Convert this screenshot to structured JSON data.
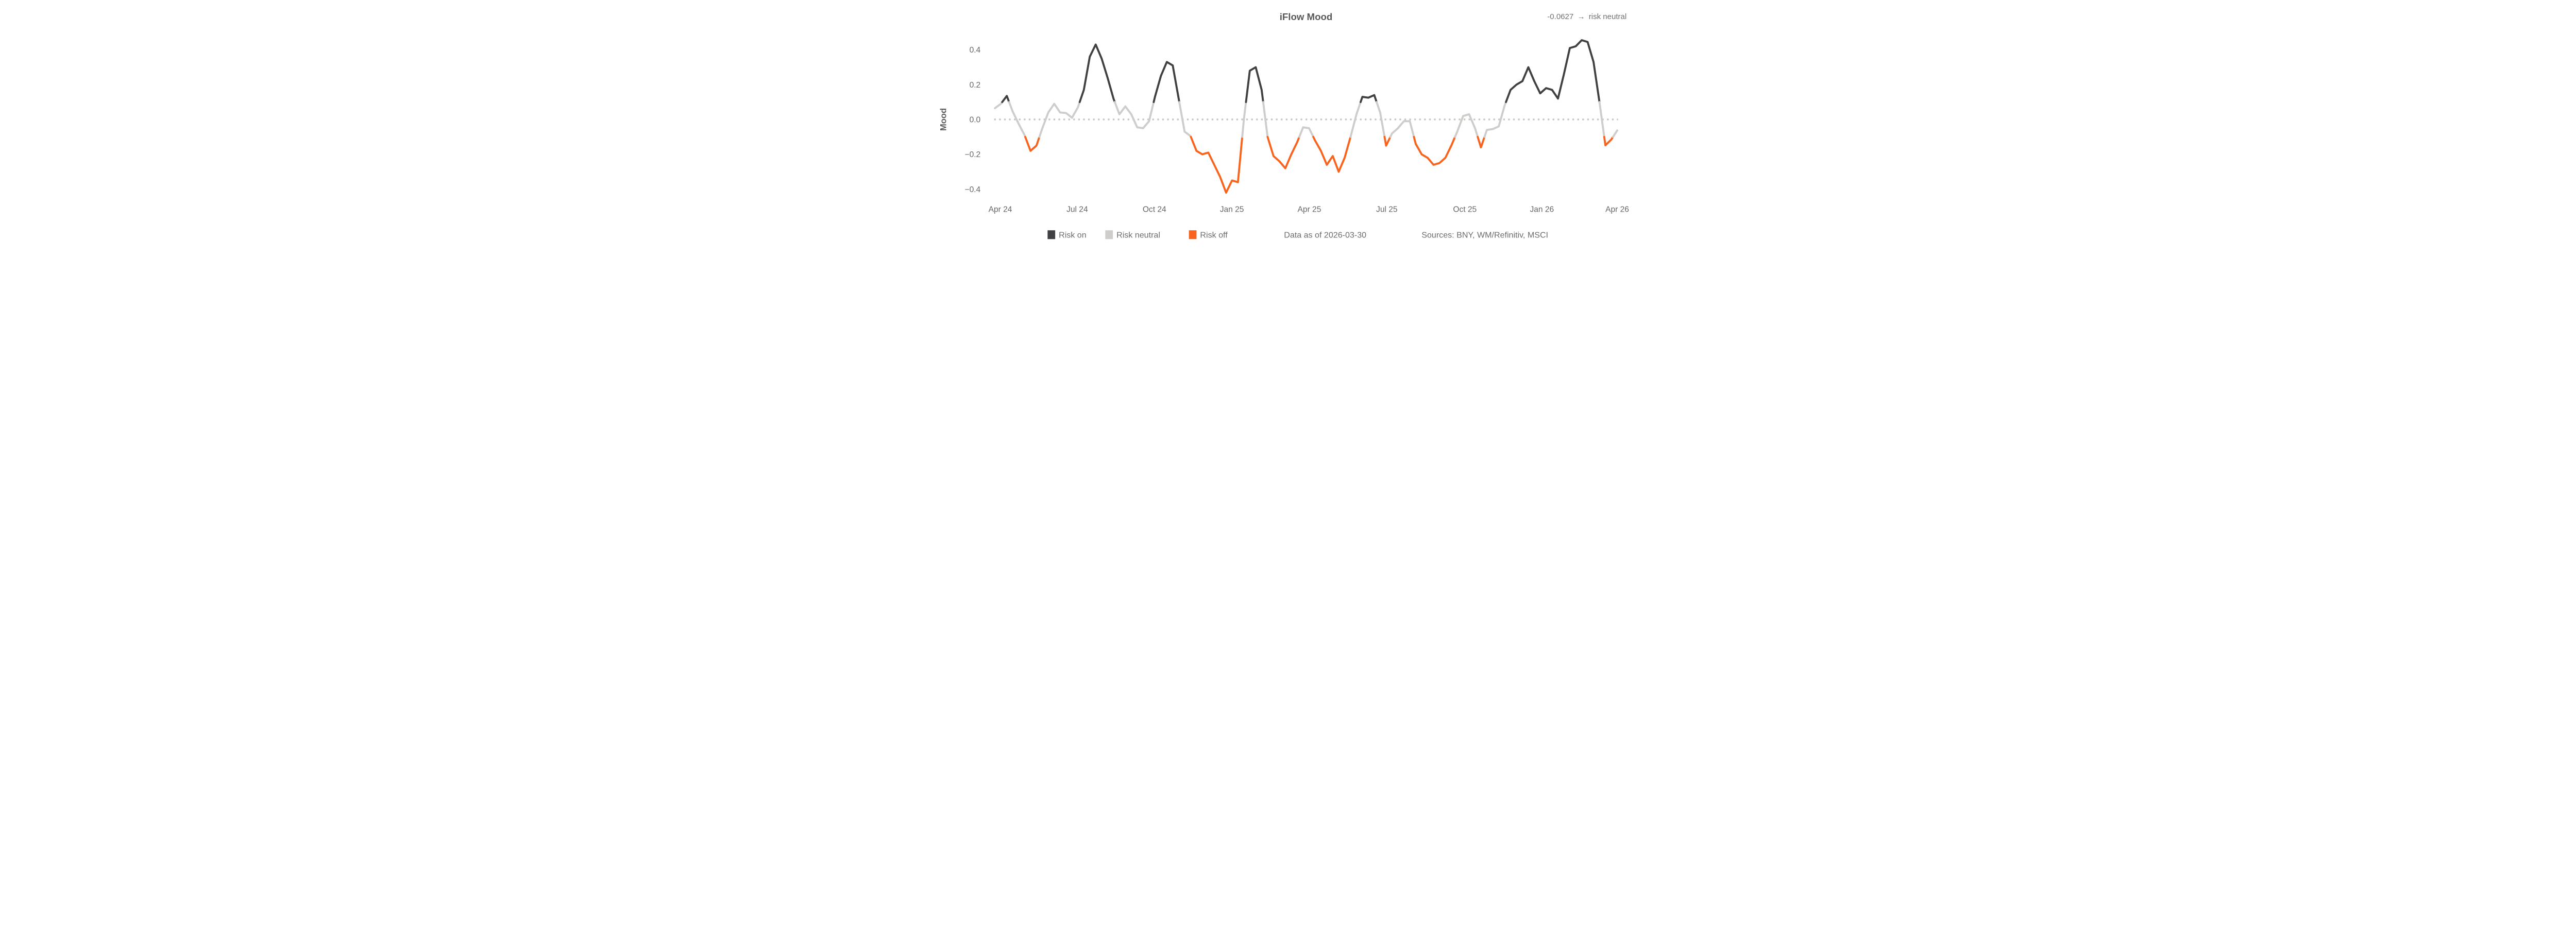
{
  "header": {
    "title": "iFlow Mood",
    "current_value": "-0.0627",
    "arrow": "→",
    "current_state": "risk neutral"
  },
  "axes": {
    "y_label": "Mood",
    "y_ticks": [
      {
        "label": "0.4",
        "v": 0.4
      },
      {
        "label": "0.2",
        "v": 0.2
      },
      {
        "label": "0.0",
        "v": 0.0
      },
      {
        "label": "−0.2",
        "v": -0.2
      },
      {
        "label": "−0.4",
        "v": -0.4
      }
    ],
    "x_ticks": [
      {
        "label": "Apr 24",
        "w": 0.9
      },
      {
        "label": "Jul 24",
        "w": 13.88
      },
      {
        "label": "Oct 24",
        "w": 26.91
      },
      {
        "label": "Jan 25",
        "w": 39.98
      },
      {
        "label": "Apr 25",
        "w": 53.05
      },
      {
        "label": "Jul 25",
        "w": 66.12
      },
      {
        "label": "Oct 25",
        "w": 79.29
      },
      {
        "label": "Jan 26",
        "w": 92.29
      },
      {
        "label": "Apr 26",
        "w": 105.0
      }
    ]
  },
  "legend": {
    "items": [
      {
        "label": "Risk on",
        "color": "#414143"
      },
      {
        "label": "Risk neutral",
        "color": "#cecdcb"
      },
      {
        "label": "Risk off",
        "color": "#f8641e"
      }
    ]
  },
  "footer": {
    "data_as_of": "Data as of 2026-03-30",
    "sources": "Sources:  BNY, WM/Refinitiv, MSCI"
  },
  "chart_data": {
    "type": "line",
    "title": "iFlow Mood",
    "ylabel": "Mood",
    "ylim": [
      -0.5,
      0.5
    ],
    "grid": false,
    "legend_position": "bottom",
    "frequency": "weekly",
    "x_start": "2024-03-25",
    "x_end": "2026-03-30",
    "zero_line": "dotted",
    "thresholds": {
      "risk_on_above": 0.1,
      "risk_off_below": -0.1
    },
    "colors": {
      "risk_on": "#414143",
      "risk_neutral": "#cecdcb",
      "risk_off": "#f8641e",
      "zero_line": "#c8c7c5"
    },
    "current": {
      "value": -0.0627,
      "state": "risk neutral"
    },
    "values": [
      0.065,
      0.09,
      0.135,
      0.045,
      -0.025,
      -0.09,
      -0.18,
      -0.15,
      -0.05,
      0.04,
      0.09,
      0.04,
      0.037,
      0.01,
      0.07,
      0.17,
      0.36,
      0.43,
      0.35,
      0.24,
      0.12,
      0.03,
      0.075,
      0.03,
      -0.045,
      -0.05,
      -0.01,
      0.13,
      0.25,
      0.33,
      0.31,
      0.12,
      -0.07,
      -0.095,
      -0.18,
      -0.2,
      -0.19,
      -0.26,
      -0.33,
      -0.42,
      -0.35,
      -0.36,
      0.0,
      0.28,
      0.3,
      0.17,
      -0.1,
      -0.21,
      -0.24,
      -0.28,
      -0.2,
      -0.13,
      -0.045,
      -0.05,
      -0.12,
      -0.18,
      -0.26,
      -0.21,
      -0.3,
      -0.22,
      -0.1,
      0.03,
      0.13,
      0.125,
      0.14,
      0.04,
      -0.15,
      -0.08,
      -0.05,
      -0.01,
      -0.01,
      -0.14,
      -0.2,
      -0.22,
      -0.26,
      -0.25,
      -0.22,
      -0.15,
      -0.07,
      0.02,
      0.03,
      -0.05,
      -0.16,
      -0.06,
      -0.055,
      -0.04,
      0.08,
      0.17,
      0.2,
      0.22,
      0.3,
      0.22,
      0.15,
      0.18,
      0.17,
      0.12,
      0.26,
      0.41,
      0.42,
      0.455,
      0.445,
      0.33,
      0.1,
      -0.148,
      -0.115,
      -0.0627
    ]
  }
}
